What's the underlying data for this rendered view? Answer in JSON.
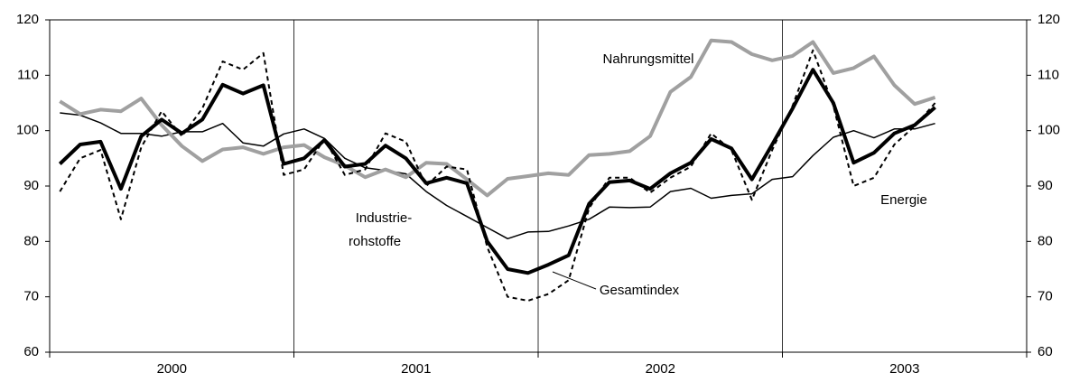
{
  "chart_data": {
    "type": "line",
    "x": [
      0.5,
      1.5,
      2.5,
      3.5,
      4.5,
      5.5,
      6.5,
      7.5,
      8.5,
      9.5,
      10.5,
      11.5,
      12.5,
      13.5,
      14.5,
      15.5,
      16.5,
      17.5,
      18.5,
      19.5,
      20.5,
      21.5,
      22.5,
      23.5,
      24.5,
      25.5,
      26.5,
      27.5,
      28.5,
      29.5,
      30.5,
      31.5,
      32.5,
      33.5,
      34.5,
      35.5,
      36.5,
      37.5,
      38.5,
      39.5,
      40.5,
      41.5,
      42.5,
      43.5
    ],
    "xlim": [
      0,
      48
    ],
    "xticks": [
      {
        "value": 6,
        "label": "2000"
      },
      {
        "value": 18,
        "label": "2001"
      },
      {
        "value": 30,
        "label": "2002"
      },
      {
        "value": 42,
        "label": "2003"
      }
    ],
    "ylim": [
      60,
      120
    ],
    "yticks": [
      60,
      70,
      80,
      90,
      100,
      110,
      120
    ],
    "y2lim": [
      60,
      120
    ],
    "y2ticks": [
      60,
      70,
      80,
      90,
      100,
      110,
      120
    ],
    "series": [
      {
        "name_lines": [
          "Industrie-",
          "rohstoffe"
        ],
        "color": "#000000",
        "width": 1.5,
        "values": [
          103.2,
          102.8,
          101.4,
          99.5,
          99.5,
          99,
          99.8,
          99.8,
          101.3,
          97.8,
          97.2,
          99.4,
          100.3,
          98.6,
          95,
          93.3,
          92.8,
          92.2,
          89,
          86.5,
          84.5,
          82.5,
          80.5,
          81.7,
          81.8,
          82.8,
          84,
          86.2,
          86.1,
          86.2,
          89,
          89.6,
          87.8,
          88.3,
          88.6,
          91.2,
          91.7,
          95.5,
          98.8,
          100,
          98.7,
          100.3,
          100.3,
          101.3
        ]
      },
      {
        "name": "Nahrungsmittel",
        "color": "#a0a0a0",
        "width": 4,
        "values": [
          105.3,
          103,
          103.8,
          103.5,
          105.8,
          101,
          97.2,
          94.5,
          96.6,
          97,
          95.8,
          97,
          97.4,
          95.2,
          93.7,
          91.6,
          93,
          91.6,
          94.2,
          94,
          91.2,
          88.3,
          91.3,
          91.8,
          92.3,
          92,
          95.6,
          95.8,
          96.3,
          99,
          107,
          109.7,
          116.3,
          116,
          113.8,
          112.7,
          113.5,
          116,
          110.4,
          111.3,
          113.4,
          108.2,
          104.8,
          106
        ]
      },
      {
        "name": "Energie",
        "color": "#000000",
        "width": 2,
        "dash": true,
        "values": [
          89,
          95,
          96.5,
          84,
          97,
          103.5,
          99,
          104,
          112.5,
          111,
          114,
          92,
          93,
          98.5,
          92,
          93,
          99.5,
          98,
          90,
          93.5,
          93,
          79,
          70,
          69.3,
          70.5,
          73,
          86,
          91.5,
          91.5,
          88.8,
          91.5,
          93.5,
          99.5,
          96.5,
          87.5,
          96.5,
          104.5,
          114.5,
          104.5,
          90,
          91.5,
          97.5,
          100.8,
          105
        ]
      },
      {
        "name": "Gesamtindex",
        "color": "#000000",
        "width": 4,
        "values": [
          94,
          97.5,
          98,
          89.5,
          99,
          102,
          99.5,
          102,
          108.3,
          106.7,
          108.2,
          94,
          95,
          98.3,
          93.5,
          94,
          97.3,
          95,
          90.5,
          91.5,
          90.5,
          80,
          75,
          74.3,
          75.8,
          77.5,
          86.8,
          90.7,
          91,
          89.5,
          92.3,
          94.2,
          98.5,
          96.8,
          91.2,
          97.5,
          104,
          111,
          105,
          94.2,
          96,
          99.5,
          101,
          104.2
        ]
      }
    ]
  }
}
